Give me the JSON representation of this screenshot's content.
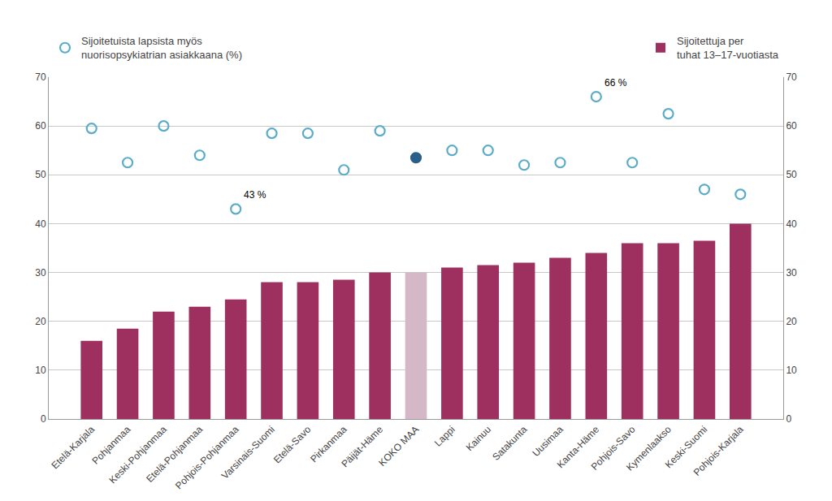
{
  "chart_data": {
    "type": "bar",
    "categories": [
      "Etelä-Karjala",
      "Pohjanmaa",
      "Keski-Pohjanmaa",
      "Etelä-Pohjanmaa",
      "Pohjois-Pohjanmaa",
      "Varsinais-Suomi",
      "Etelä-Savo",
      "Pirkanmaa",
      "Päijät-Häme",
      "KOKO MAA",
      "Lappi",
      "Kainuu",
      "Satakunta",
      "Uusimaa",
      "Kanta-Häme",
      "Pohjois-Savo",
      "Kymenlaakso",
      "Keski-Suomi",
      "Pohjois-Karjala"
    ],
    "series": [
      {
        "name": "Sijoitettuja per\ntuhat 13–17-vuotiasta",
        "type": "bar",
        "color": "#9e3060",
        "colors": [
          "#9e3060",
          "#9e3060",
          "#9e3060",
          "#9e3060",
          "#9e3060",
          "#9e3060",
          "#9e3060",
          "#9e3060",
          "#9e3060",
          "#d4b8c8",
          "#9e3060",
          "#9e3060",
          "#9e3060",
          "#9e3060",
          "#9e3060",
          "#9e3060",
          "#9e3060",
          "#9e3060",
          "#9e3060"
        ],
        "values": [
          16.0,
          18.5,
          22.0,
          23.0,
          24.5,
          28.0,
          28.0,
          28.5,
          30.0,
          30.0,
          31.0,
          31.5,
          32.0,
          33.0,
          34.0,
          36.0,
          36.0,
          36.5,
          40.0
        ]
      },
      {
        "name": "Sijoitetuista lapsista myös\nnuorisopsykiatrian asiakkaana (%)",
        "type": "scatter",
        "axis": "y2",
        "marker": "circle-open",
        "color": "#5bacc8",
        "colors": [
          "#5bacc8",
          "#5bacc8",
          "#5bacc8",
          "#5bacc8",
          "#5bacc8",
          "#5bacc8",
          "#5bacc8",
          "#5bacc8",
          "#5bacc8",
          "#2a5f8a",
          "#5bacc8",
          "#5bacc8",
          "#5bacc8",
          "#5bacc8",
          "#5bacc8",
          "#5bacc8",
          "#5bacc8",
          "#5bacc8",
          "#5bacc8"
        ],
        "values": [
          59.5,
          52.5,
          60.0,
          54.0,
          43.0,
          58.5,
          58.5,
          51.0,
          59.0,
          53.5,
          55.0,
          55.0,
          52.0,
          52.5,
          66.0,
          52.5,
          62.5,
          47.0,
          46.0
        ]
      }
    ],
    "ylim": [
      0,
      70
    ],
    "yticks": [
      0,
      10,
      20,
      30,
      40,
      50,
      60,
      70
    ],
    "y2lim": [
      0,
      70
    ],
    "y2ticks": [
      0,
      10,
      20,
      30,
      40,
      50,
      60,
      70
    ],
    "grid": true,
    "legend": "top",
    "annotations": [
      {
        "text": "43 %",
        "x": "Pohjois-Pohjanmaa",
        "y": 43,
        "axis": "y2"
      },
      {
        "text": "66 %",
        "x": "Kanta-Häme",
        "y": 66,
        "axis": "y2"
      }
    ]
  }
}
